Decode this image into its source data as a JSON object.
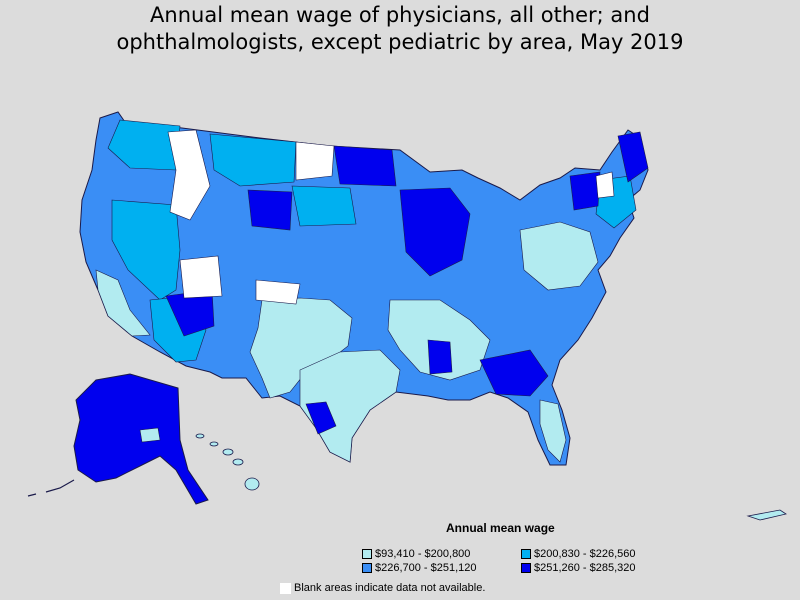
{
  "title_lines": [
    "Annual mean wage of physicians, all other; and",
    "ophthalmologists, except pediatric by area, May 2019"
  ],
  "legend": {
    "title": "Annual mean wage",
    "items": [
      {
        "label": "$93,410 - $200,800",
        "color": "#b2ebf0"
      },
      {
        "label": "$200,830 - $226,560",
        "color": "#00b0f0"
      },
      {
        "label": "$226,700 - $251,120",
        "color": "#3a8ef5"
      },
      {
        "label": "$251,260 - $285,320",
        "color": "#0000ee"
      }
    ],
    "blank_note": "Blank areas indicate data not available.",
    "blank_color": "#ffffff"
  },
  "colors": {
    "background": "#dcdcdc",
    "border": "#1a1a4a"
  }
}
